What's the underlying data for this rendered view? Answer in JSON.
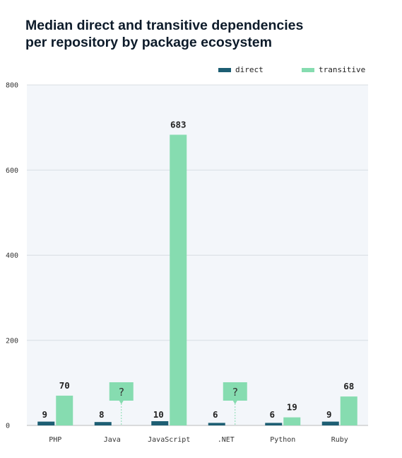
{
  "chart_data": {
    "type": "bar",
    "title_lines": [
      "Median direct and transitive dependencies",
      "per repository by package ecosystem"
    ],
    "categories": [
      "PHP",
      "Java",
      "JavaScript",
      ".NET",
      "Python",
      "Ruby"
    ],
    "series": [
      {
        "name": "direct",
        "color": "#1d5e73",
        "values": [
          9,
          8,
          10,
          6,
          6,
          9
        ],
        "labels": [
          "9",
          "8",
          "10",
          "6",
          "6",
          "9"
        ]
      },
      {
        "name": "transitive",
        "color": "#86dcb0",
        "values": [
          70,
          null,
          683,
          null,
          19,
          68
        ],
        "labels": [
          "70",
          "?",
          "683",
          "?",
          "19",
          "68"
        ]
      }
    ],
    "ylim": [
      0,
      800
    ],
    "yticks": [
      "0",
      "200",
      "400",
      "600",
      "800"
    ],
    "grid": true,
    "legend_position": "top-right",
    "plot_background": "#f3f6fa"
  }
}
